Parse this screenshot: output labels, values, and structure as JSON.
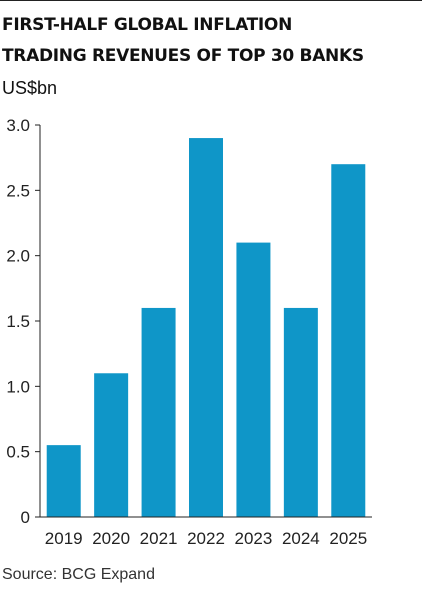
{
  "header": {
    "title_line1": "FIRST-HALF GLOBAL INFLATION",
    "title_line2": "TRADING REVENUES OF TOP 30 BANKS"
  },
  "source": "Source: BCG Expand",
  "chart_data": {
    "type": "bar",
    "title": "FIRST-HALF GLOBAL INFLATION TRADING REVENUES OF TOP 30 BANKS",
    "ylabel": "US$bn",
    "xlabel": "",
    "categories": [
      "2019",
      "2020",
      "2021",
      "2022",
      "2023",
      "2024",
      "2025"
    ],
    "values": [
      0.55,
      1.1,
      1.6,
      2.9,
      2.1,
      1.6,
      2.7
    ],
    "ylim": [
      0,
      3.0
    ],
    "yticks": [
      "0",
      "0.5",
      "1.0",
      "1.5",
      "2.0",
      "2.5",
      "3.0"
    ],
    "bar_color": "#0f96c8",
    "axis_color": "#222222",
    "grid": false,
    "legend": "none"
  }
}
